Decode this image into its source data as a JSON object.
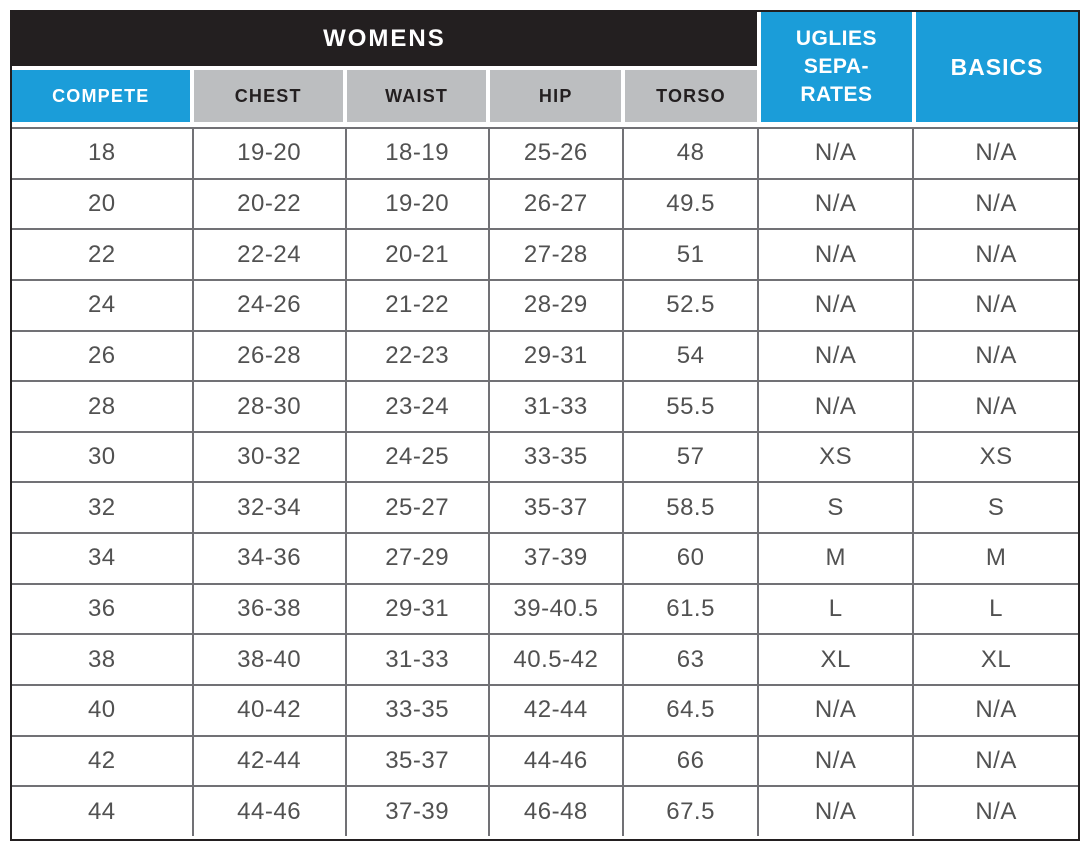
{
  "colors": {
    "blue": "#1B9DD9",
    "black": "#231F20",
    "gray_header": "#BCBEC0",
    "grid_line": "#717175",
    "body_text": "#515151"
  },
  "header": {
    "group_title": "WOMENS",
    "columns": [
      "COMPETE",
      "CHEST",
      "WAIST",
      "HIP",
      "TORSO"
    ],
    "uglies_label": "UGLIES\nSEPA-\nRATES",
    "basics_label": "BASICS"
  },
  "rows": [
    {
      "compete": "18",
      "chest": "19-20",
      "waist": "18-19",
      "hip": "25-26",
      "torso": "48",
      "uglies": "N/A",
      "basics": "N/A"
    },
    {
      "compete": "20",
      "chest": "20-22",
      "waist": "19-20",
      "hip": "26-27",
      "torso": "49.5",
      "uglies": "N/A",
      "basics": "N/A"
    },
    {
      "compete": "22",
      "chest": "22-24",
      "waist": "20-21",
      "hip": "27-28",
      "torso": "51",
      "uglies": "N/A",
      "basics": "N/A"
    },
    {
      "compete": "24",
      "chest": "24-26",
      "waist": "21-22",
      "hip": "28-29",
      "torso": "52.5",
      "uglies": "N/A",
      "basics": "N/A"
    },
    {
      "compete": "26",
      "chest": "26-28",
      "waist": "22-23",
      "hip": "29-31",
      "torso": "54",
      "uglies": "N/A",
      "basics": "N/A"
    },
    {
      "compete": "28",
      "chest": "28-30",
      "waist": "23-24",
      "hip": "31-33",
      "torso": "55.5",
      "uglies": "N/A",
      "basics": "N/A"
    },
    {
      "compete": "30",
      "chest": "30-32",
      "waist": "24-25",
      "hip": "33-35",
      "torso": "57",
      "uglies": "XS",
      "basics": "XS"
    },
    {
      "compete": "32",
      "chest": "32-34",
      "waist": "25-27",
      "hip": "35-37",
      "torso": "58.5",
      "uglies": "S",
      "basics": "S"
    },
    {
      "compete": "34",
      "chest": "34-36",
      "waist": "27-29",
      "hip": "37-39",
      "torso": "60",
      "uglies": "M",
      "basics": "M"
    },
    {
      "compete": "36",
      "chest": "36-38",
      "waist": "29-31",
      "hip": "39-40.5",
      "torso": "61.5",
      "uglies": "L",
      "basics": "L"
    },
    {
      "compete": "38",
      "chest": "38-40",
      "waist": "31-33",
      "hip": "40.5-42",
      "torso": "63",
      "uglies": "XL",
      "basics": "XL"
    },
    {
      "compete": "40",
      "chest": "40-42",
      "waist": "33-35",
      "hip": "42-44",
      "torso": "64.5",
      "uglies": "N/A",
      "basics": "N/A"
    },
    {
      "compete": "42",
      "chest": "42-44",
      "waist": "35-37",
      "hip": "44-46",
      "torso": "66",
      "uglies": "N/A",
      "basics": "N/A"
    },
    {
      "compete": "44",
      "chest": "44-46",
      "waist": "37-39",
      "hip": "46-48",
      "torso": "67.5",
      "uglies": "N/A",
      "basics": "N/A"
    }
  ]
}
